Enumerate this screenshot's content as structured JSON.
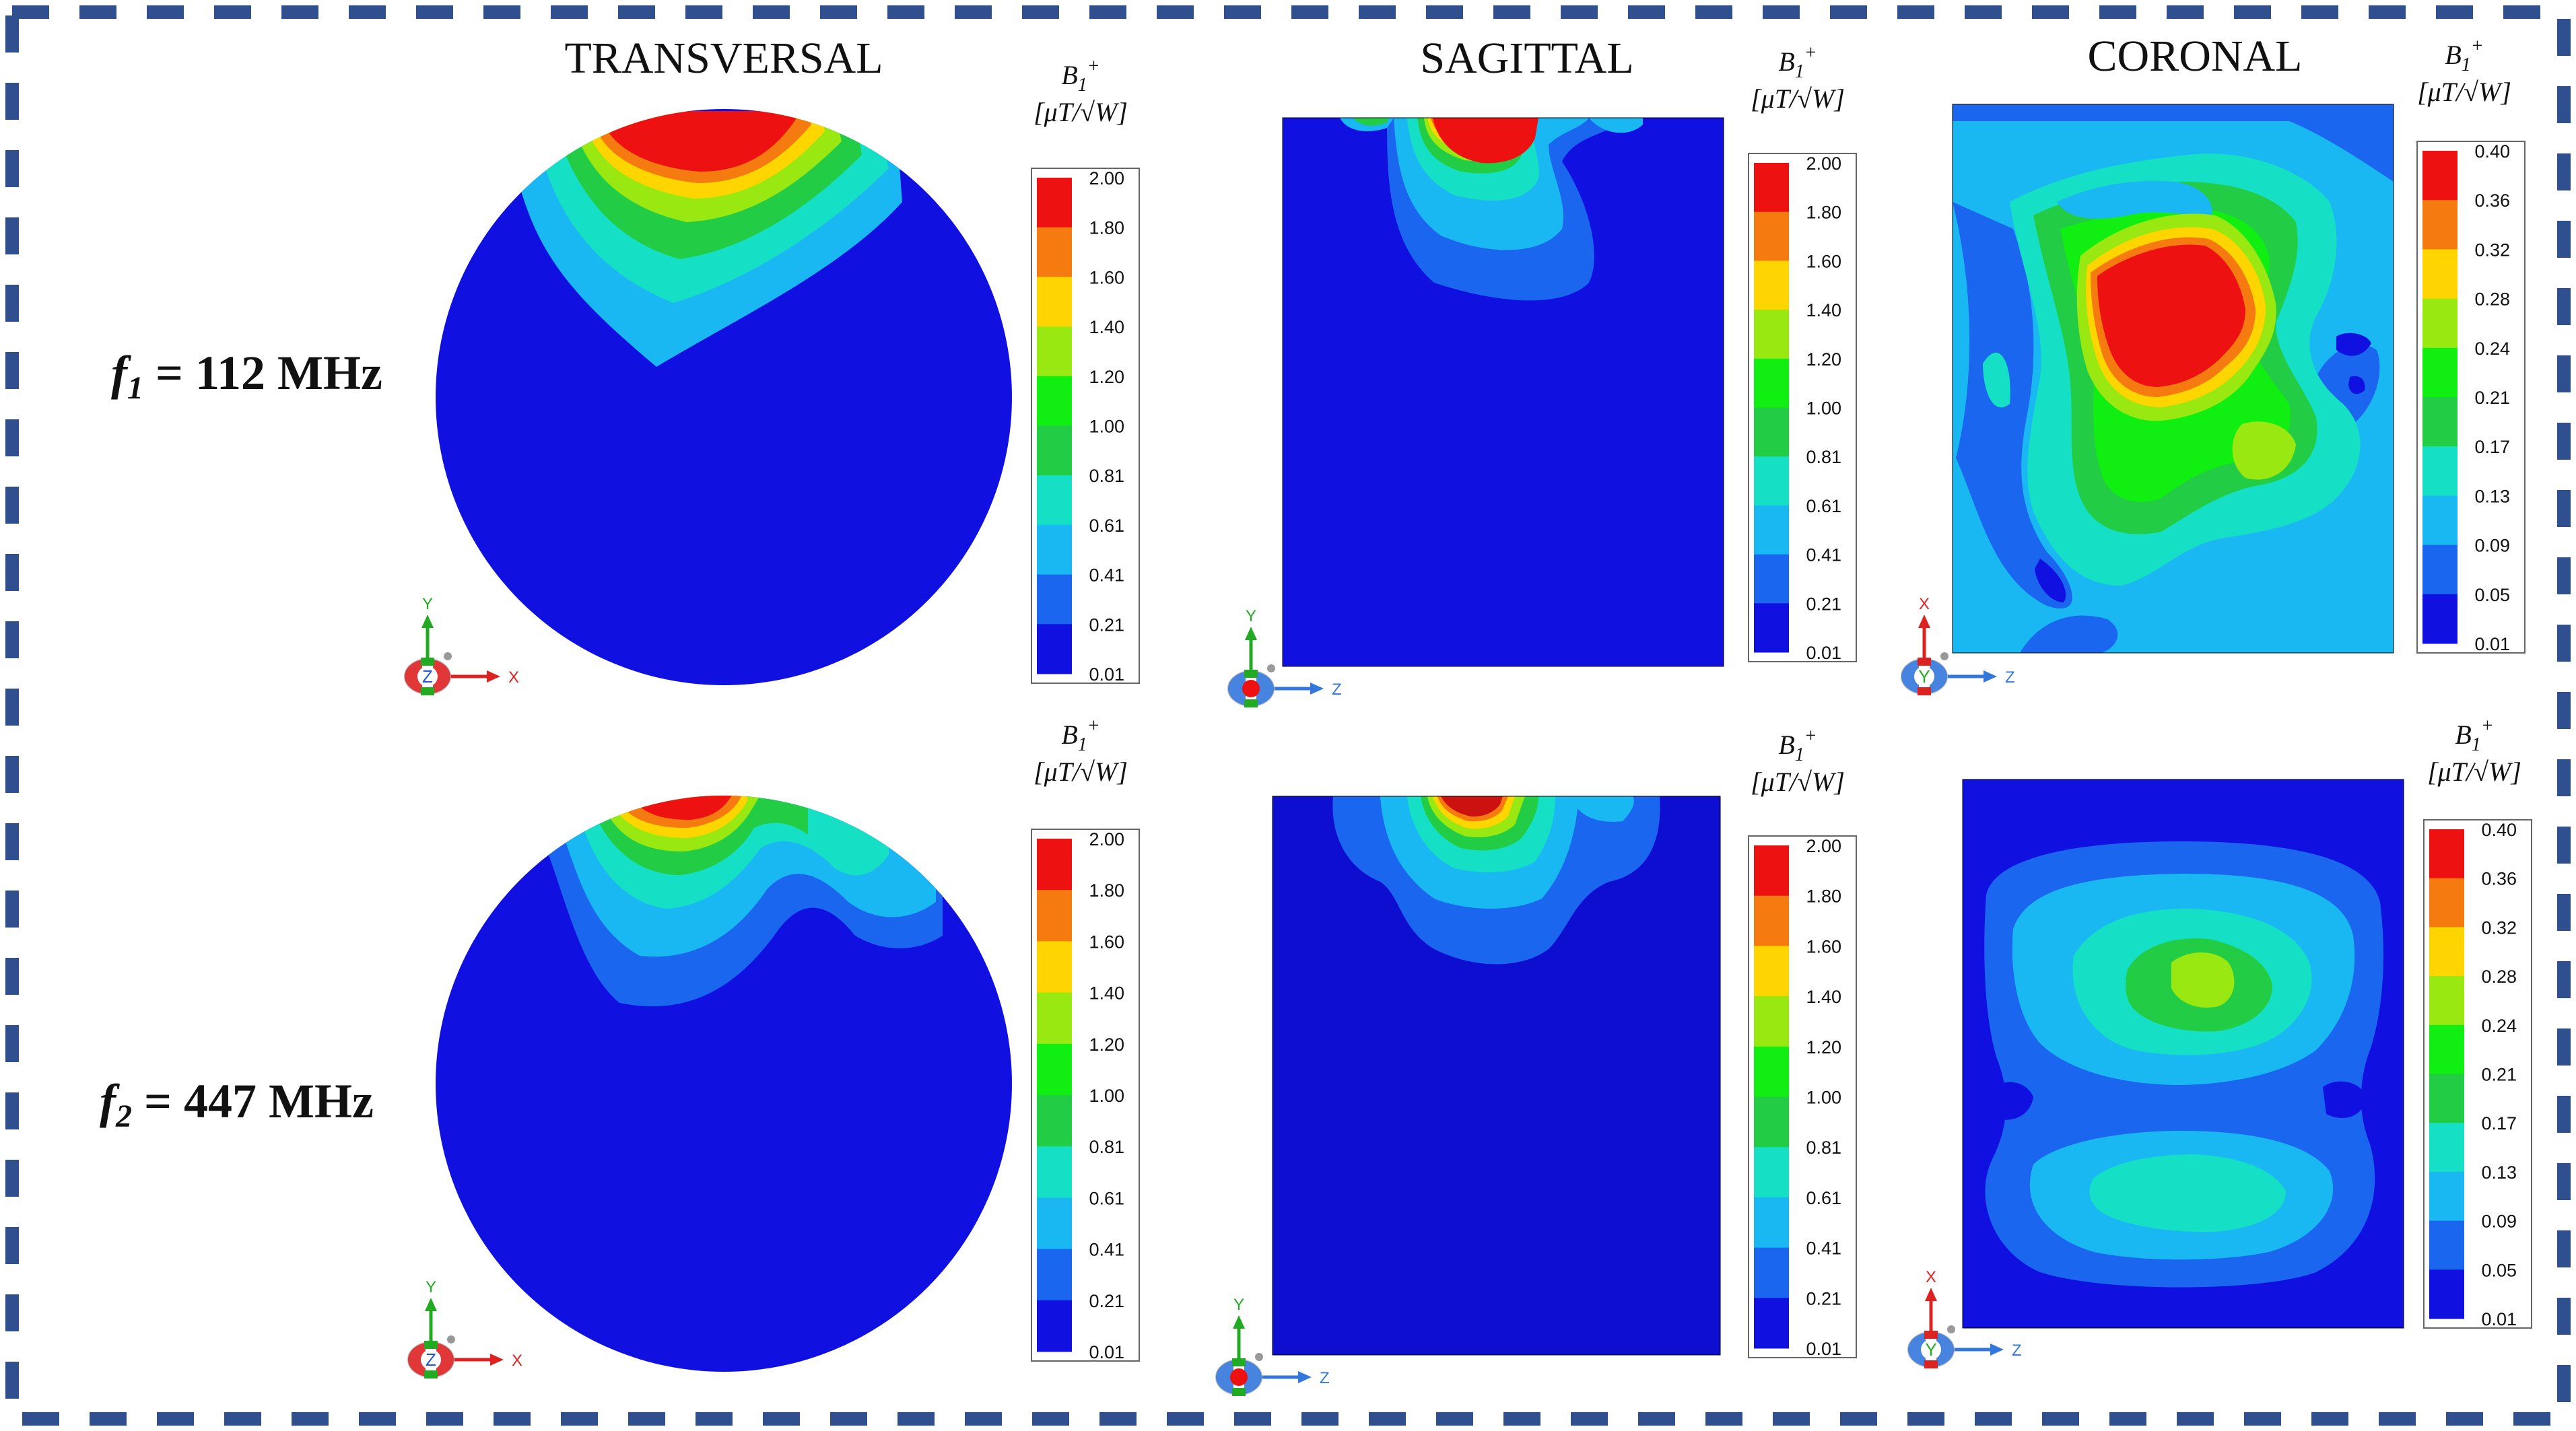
{
  "columns": [
    {
      "id": "transversal",
      "title": "TRANSVERSAL"
    },
    {
      "id": "sagittal",
      "title": "SAGITTAL"
    },
    {
      "id": "coronal",
      "title": "CORONAL"
    }
  ],
  "rows": [
    {
      "id": "f1",
      "label_symbol": "f",
      "label_sub": "1",
      "label_value": " = 112 MHz"
    },
    {
      "id": "f2",
      "label_symbol": "f",
      "label_sub": "2",
      "label_value": " = 447 MHz"
    }
  ],
  "colorbar": {
    "label_line1": "B",
    "label_sub": "1",
    "label_sup": "+",
    "unit": "[μT/√W]",
    "colors": [
      "#1010e0",
      "#1a66ee",
      "#1ab8f2",
      "#15e0c5",
      "#22cc44",
      "#11ee11",
      "#99e811",
      "#ffd500",
      "#f57a10",
      "#ee1111"
    ],
    "ticks_main": [
      "2.00",
      "1.80",
      "1.60",
      "1.40",
      "1.20",
      "1.00",
      "0.81",
      "0.61",
      "0.41",
      "0.21",
      "0.01"
    ],
    "ticks_coronal": [
      "0.40",
      "0.36",
      "0.32",
      "0.28",
      "0.24",
      "0.21",
      "0.17",
      "0.13",
      "0.09",
      "0.05",
      "0.01"
    ]
  },
  "axes": {
    "transversal": {
      "up": "Y",
      "center": "Z",
      "right": "X"
    },
    "sagittal": {
      "up": "Y",
      "center": "",
      "right": "Z"
    },
    "coronal": {
      "up": "X",
      "center": "Y",
      "right": "Z"
    }
  },
  "colors": {
    "border": "#2f4f8f",
    "field_low": "#1010e0",
    "field_low_dark": "#0e0ed0"
  }
}
